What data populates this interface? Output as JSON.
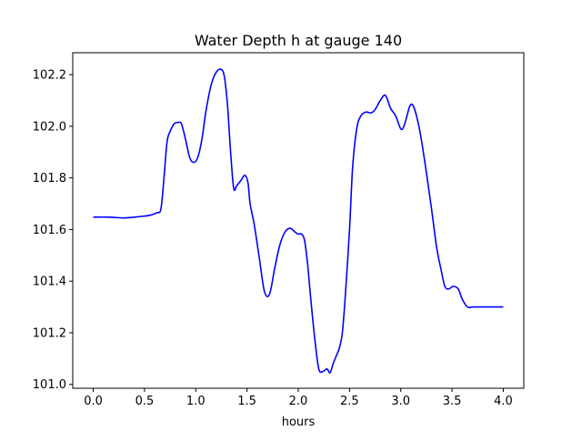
{
  "chart_data": {
    "type": "line",
    "title": "Water Depth h at gauge 140",
    "xlabel": "hours",
    "ylabel": "",
    "xlim": [
      -0.2,
      4.2
    ],
    "ylim": [
      100.985,
      102.285
    ],
    "grid": false,
    "legend": "none",
    "x_ticks": [
      0.0,
      0.5,
      1.0,
      1.5,
      2.0,
      2.5,
      3.0,
      3.5,
      4.0
    ],
    "x_tick_labels": [
      "0.0",
      "0.5",
      "1.0",
      "1.5",
      "2.0",
      "2.5",
      "3.0",
      "3.5",
      "4.0"
    ],
    "y_ticks": [
      101.0,
      101.2,
      101.4,
      101.6,
      101.8,
      102.0,
      102.2
    ],
    "y_tick_labels": [
      "101.0",
      "101.2",
      "101.4",
      "101.6",
      "101.8",
      "102.0",
      "102.2"
    ],
    "series": [
      {
        "color": "#0000ff",
        "x": [
          0.0,
          0.15,
          0.3,
          0.45,
          0.55,
          0.62,
          0.66,
          0.69,
          0.72,
          0.75,
          0.79,
          0.83,
          0.86,
          0.9,
          0.94,
          0.98,
          1.02,
          1.06,
          1.1,
          1.15,
          1.2,
          1.25,
          1.28,
          1.31,
          1.34,
          1.37,
          1.4,
          1.44,
          1.48,
          1.51,
          1.53,
          1.57,
          1.62,
          1.67,
          1.72,
          1.77,
          1.82,
          1.87,
          1.92,
          1.97,
          2.0,
          2.03,
          2.06,
          2.09,
          2.12,
          2.16,
          2.2,
          2.24,
          2.28,
          2.31,
          2.34,
          2.37,
          2.4,
          2.43,
          2.46,
          2.5,
          2.53,
          2.57,
          2.61,
          2.66,
          2.71,
          2.75,
          2.8,
          2.85,
          2.9,
          2.95,
          3.0,
          3.03,
          3.06,
          3.09,
          3.12,
          3.16,
          3.2,
          3.25,
          3.3,
          3.35,
          3.39,
          3.43,
          3.47,
          3.51,
          3.56,
          3.6,
          3.65,
          3.7,
          3.74,
          3.78,
          3.82,
          3.86,
          3.89,
          3.93,
          3.97,
          4.0
        ],
        "values": [
          101.648,
          101.648,
          101.645,
          101.65,
          101.655,
          101.665,
          101.68,
          101.8,
          101.94,
          101.98,
          102.01,
          102.015,
          102.01,
          101.95,
          101.88,
          101.86,
          101.88,
          101.95,
          102.06,
          102.16,
          102.21,
          102.22,
          102.19,
          102.08,
          101.9,
          101.76,
          101.77,
          101.79,
          101.81,
          101.78,
          101.7,
          101.62,
          101.49,
          101.36,
          101.35,
          101.45,
          101.54,
          101.59,
          101.605,
          101.59,
          101.582,
          101.583,
          101.56,
          101.47,
          101.34,
          101.18,
          101.06,
          101.05,
          101.06,
          101.045,
          101.08,
          101.11,
          101.14,
          101.2,
          101.35,
          101.6,
          101.84,
          101.99,
          102.04,
          102.055,
          102.052,
          102.065,
          102.1,
          102.12,
          102.07,
          102.04,
          101.99,
          102.0,
          102.04,
          102.08,
          102.08,
          102.03,
          101.95,
          101.82,
          101.68,
          101.53,
          101.45,
          101.38,
          101.37,
          101.38,
          101.37,
          101.33,
          101.3,
          101.3,
          101.3,
          101.3,
          101.3,
          101.3,
          101.3,
          101.3,
          101.3,
          101.3
        ]
      }
    ]
  }
}
